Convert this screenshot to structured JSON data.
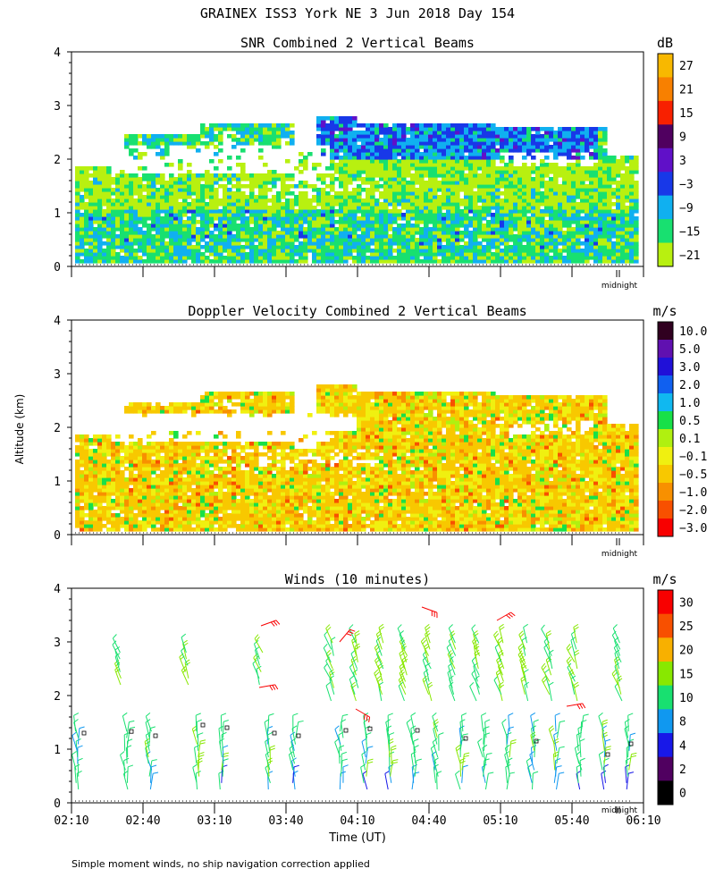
{
  "figure": {
    "title": "GRAINEX ISS3 York NE   3 Jun 2018 Day 154",
    "footnote": "Simple moment winds, no ship navigation correction applied",
    "ylabel": "Altitude (km)",
    "xlabel": "Time (UT)",
    "midnight_label": "midnight"
  },
  "chart_data": [
    {
      "type": "heatmap",
      "title": "SNR Combined 2 Vertical Beams",
      "units": "dB",
      "ylim": [
        0,
        4
      ],
      "yticks": [
        "0",
        "1",
        "2",
        "3",
        "4"
      ],
      "x_time_range": [
        "02:10",
        "06:10"
      ],
      "colorbar": [
        "27",
        "21",
        "15",
        "9",
        "3",
        "−3",
        "−9",
        "−15",
        "−21"
      ],
      "colors": [
        "#f8b800",
        "#f88000",
        "#f82000",
        "#500060",
        "#6010c8",
        "#1838e8",
        "#10b0f0",
        "#18e070",
        "#b8f010"
      ]
    },
    {
      "type": "heatmap",
      "title": "Doppler Velocity Combined 2 Vertical Beams",
      "units": "m/s",
      "ylim": [
        0,
        4
      ],
      "yticks": [
        "0",
        "1",
        "2",
        "3",
        "4"
      ],
      "x_time_range": [
        "02:10",
        "06:10"
      ],
      "colorbar": [
        "10.0",
        "5.0",
        "3.0",
        "2.0",
        "1.0",
        "0.5",
        "0.1",
        "−0.1",
        "−0.5",
        "−1.0",
        "−2.0",
        "−3.0"
      ],
      "colors": [
        "#300020",
        "#6010b0",
        "#2010d8",
        "#1060f0",
        "#10b8f0",
        "#18e048",
        "#b0f010",
        "#f0f010",
        "#f8c800",
        "#f89000",
        "#f85000",
        "#f80000"
      ]
    },
    {
      "type": "wind-barbs",
      "title": "Winds (10 minutes)",
      "units": "m/s",
      "ylim": [
        0,
        4
      ],
      "yticks": [
        "0",
        "1",
        "2",
        "3",
        "4"
      ],
      "xticks": [
        "02:10",
        "02:40",
        "03:10",
        "03:40",
        "04:10",
        "04:40",
        "05:10",
        "05:40",
        "06:10"
      ],
      "colorbar": [
        "30",
        "25",
        "20",
        "15",
        "10",
        "8",
        "4",
        "2",
        "0"
      ],
      "colors": [
        "#f80000",
        "#f85000",
        "#f8b000",
        "#88e800",
        "#18e070",
        "#1098f0",
        "#1818e8",
        "#500060",
        "#000000"
      ]
    }
  ]
}
